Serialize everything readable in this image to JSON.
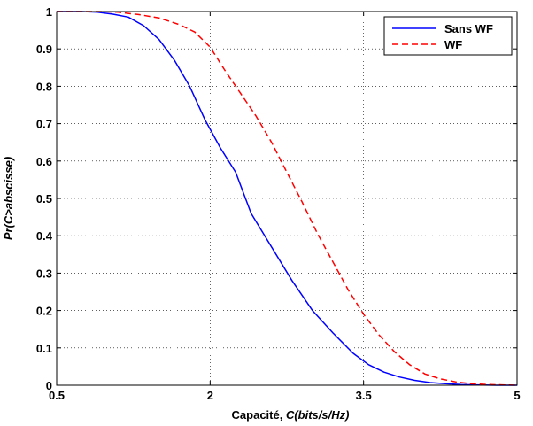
{
  "chart_data": {
    "type": "line",
    "title": "",
    "xlabel_plain": "Capacité, ",
    "xlabel_italic": "C(bits/s/Hz)",
    "ylabel": "Pr(C>abscisse)",
    "xlim": [
      0.5,
      5
    ],
    "ylim": [
      0,
      1
    ],
    "xticks": [
      0.5,
      2,
      3.5,
      5
    ],
    "xtick_labels": [
      "0.5",
      "2",
      "3.5",
      "5"
    ],
    "yticks": [
      0,
      0.1,
      0.2,
      0.3,
      0.4,
      0.5,
      0.6,
      0.7,
      0.8,
      0.9,
      1
    ],
    "ytick_labels": [
      "0",
      "0.1",
      "0.2",
      "0.3",
      "0.4",
      "0.5",
      "0.6",
      "0.7",
      "0.8",
      "0.9",
      "1"
    ],
    "grid": true,
    "legend_position": "top-right",
    "series": [
      {
        "name": "Sans WF",
        "color": "#0000ff",
        "style": "solid",
        "x": [
          0.5,
          0.6,
          0.75,
          0.9,
          1.05,
          1.2,
          1.35,
          1.5,
          1.65,
          1.8,
          1.95,
          2.1,
          2.25,
          2.4,
          2.6,
          2.8,
          3.0,
          3.2,
          3.4,
          3.55,
          3.7,
          3.85,
          4.0,
          4.15,
          4.3,
          4.45,
          4.6,
          4.8,
          5.0
        ],
        "y": [
          1.0,
          1.0,
          1.0,
          0.998,
          0.993,
          0.985,
          0.962,
          0.925,
          0.87,
          0.8,
          0.71,
          0.635,
          0.57,
          0.46,
          0.37,
          0.28,
          0.2,
          0.14,
          0.085,
          0.055,
          0.035,
          0.022,
          0.013,
          0.007,
          0.004,
          0.002,
          0.001,
          0.0,
          0.0
        ]
      },
      {
        "name": "WF",
        "color": "#ff0000",
        "style": "dashed",
        "x": [
          0.5,
          0.7,
          0.9,
          1.1,
          1.3,
          1.5,
          1.7,
          1.85,
          2.0,
          2.15,
          2.3,
          2.45,
          2.6,
          2.75,
          2.9,
          3.05,
          3.2,
          3.35,
          3.5,
          3.65,
          3.8,
          3.95,
          4.1,
          4.25,
          4.4,
          4.55,
          4.7,
          4.85,
          5.0
        ],
        "y": [
          1.0,
          1.0,
          1.0,
          0.998,
          0.992,
          0.983,
          0.965,
          0.945,
          0.905,
          0.84,
          0.78,
          0.72,
          0.65,
          0.57,
          0.49,
          0.405,
          0.33,
          0.255,
          0.19,
          0.135,
          0.09,
          0.055,
          0.03,
          0.017,
          0.009,
          0.004,
          0.002,
          0.001,
          0.0
        ]
      }
    ]
  }
}
